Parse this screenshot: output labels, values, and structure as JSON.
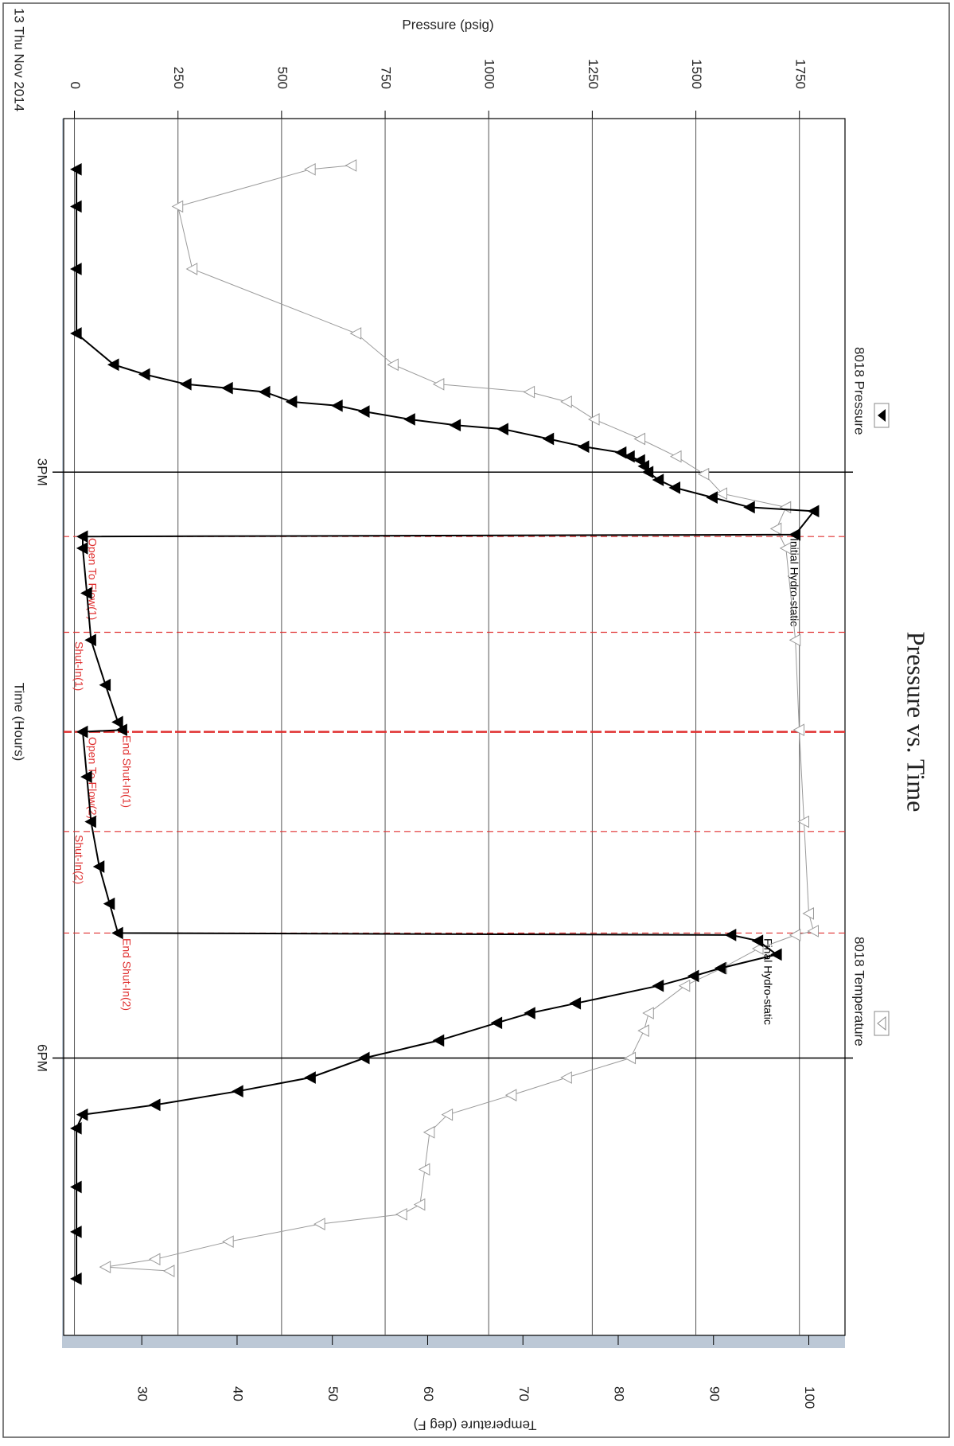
{
  "chart_data": {
    "type": "line",
    "title": "Pressure vs. Time",
    "x_label": "Time (Hours)",
    "date_label": "13 Thu Nov 2014",
    "y_label": "Pressure (psig)",
    "y2_label": "Temperature (deg F)",
    "xlim": [
      13.19,
      19.42
    ],
    "xticks": [
      {
        "value": 15,
        "label": "3PM"
      },
      {
        "value": 18,
        "label": "6PM"
      }
    ],
    "ylim": [
      -26,
      1860
    ],
    "yticks": [
      0,
      250,
      500,
      750,
      1000,
      1250,
      1500,
      1750
    ],
    "y2lim": [
      21.8,
      103.8
    ],
    "y2ticks": [
      30,
      40,
      50,
      60,
      70,
      80,
      90,
      100
    ],
    "grid": true,
    "events": [
      15.33,
      15.82,
      16.33,
      16.84,
      17.36
    ],
    "event_color": "#e03030",
    "annotations": [
      "Open To Flow(1)",
      "Shut-In(1)",
      "End Shut-In(1)",
      "Open To Flow(2)",
      "Shut-In(2)",
      "End Shut-In(2)",
      "Initial Hydro-static",
      "Final Hydro-static"
    ],
    "series": [
      {
        "name": "8018 Pressure",
        "color": "#000000",
        "marker": "filled",
        "x": [
          13.45,
          13.64,
          13.96,
          14.29,
          14.45,
          14.5,
          14.55,
          14.57,
          14.59,
          14.64,
          14.66,
          14.69,
          14.73,
          14.76,
          14.78,
          14.83,
          14.87,
          14.9,
          14.92,
          14.94,
          14.97,
          15.0,
          15.04,
          15.08,
          15.13,
          15.18,
          15.2,
          15.32,
          15.33,
          15.39,
          15.62,
          15.86,
          16.09,
          16.28,
          16.32,
          16.33,
          16.56,
          16.79,
          17.02,
          17.21,
          17.36,
          17.37,
          17.4,
          17.47,
          17.54,
          17.58,
          17.63,
          17.72,
          17.77,
          17.82,
          17.91,
          18.0,
          18.1,
          18.17,
          18.24,
          18.29,
          18.36,
          18.66,
          18.89,
          19.13
        ],
        "values": [
          5,
          5,
          5,
          5,
          95,
          170,
          270,
          370,
          460,
          525,
          635,
          700,
          810,
          920,
          1035,
          1145,
          1230,
          1320,
          1340,
          1365,
          1375,
          1385,
          1410,
          1450,
          1540,
          1630,
          1785,
          1740,
          20,
          20,
          30,
          40,
          75,
          105,
          115,
          20,
          30,
          40,
          60,
          85,
          105,
          1585,
          1650,
          1695,
          1560,
          1495,
          1410,
          1210,
          1100,
          1020,
          880,
          700,
          570,
          395,
          195,
          20,
          5,
          5,
          5,
          5
        ]
      },
      {
        "name": "8018 Temperature",
        "color": "#9a9a9a",
        "marker": "open",
        "axis": "y2",
        "x": [
          13.43,
          13.45,
          13.64,
          13.96,
          14.29,
          14.45,
          14.55,
          14.59,
          14.64,
          14.73,
          14.83,
          14.92,
          15.01,
          15.11,
          15.18,
          15.29,
          15.39,
          15.86,
          16.32,
          16.79,
          17.26,
          17.35,
          17.37,
          17.44,
          17.54,
          17.63,
          17.77,
          17.86,
          18.0,
          18.1,
          18.19,
          18.29,
          18.38,
          18.57,
          18.75,
          18.8,
          18.85,
          18.94,
          19.03,
          19.07,
          19.09
        ],
        "values": [
          52,
          47.7,
          33.8,
          35.3,
          52.5,
          56.4,
          61.2,
          70.7,
          74.6,
          77.5,
          82.3,
          86.1,
          89,
          90.9,
          97.6,
          96.6,
          97.6,
          98.6,
          99,
          99.5,
          100,
          100.5,
          98.6,
          94.7,
          90.9,
          87,
          83.2,
          82.7,
          81.3,
          74.6,
          68.8,
          62.1,
          60.2,
          59.7,
          59.2,
          57.3,
          48.7,
          39.1,
          31.4,
          26.2,
          32.9
        ]
      }
    ]
  }
}
